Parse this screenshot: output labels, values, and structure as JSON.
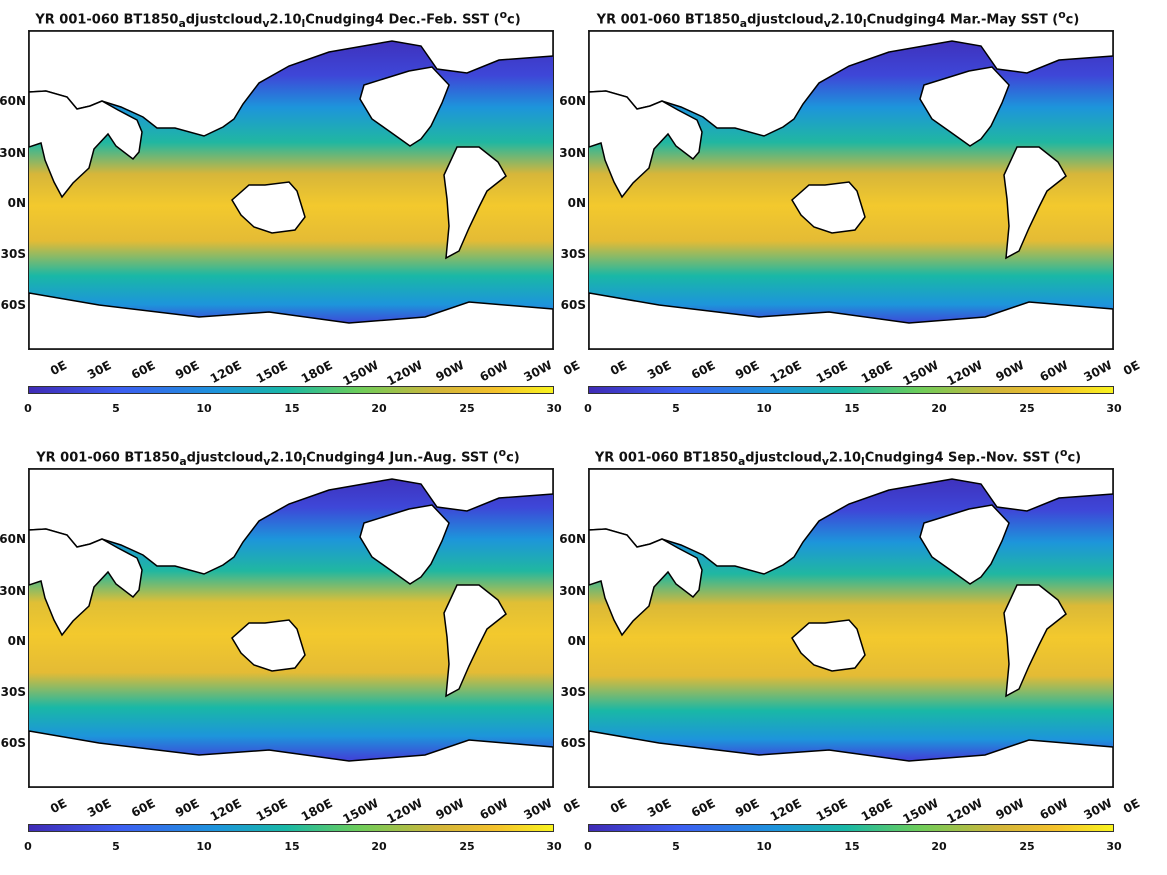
{
  "panels": [
    {
      "title": "YR 001-060 BT1850",
      "title_sub": "a",
      "title_mid": "djustcloud",
      "title_sub2": "v",
      "title_mid2": "2.10",
      "title_sub3": "l",
      "title_end": "Cnudging4 Dec.-Feb. SST (",
      "title_sup": "o",
      "title_unit": "c)",
      "season": "Dec.-Feb."
    },
    {
      "title": "YR 001-060 BT1850",
      "title_sub": "a",
      "title_mid": "djustcloud",
      "title_sub2": "v",
      "title_mid2": "2.10",
      "title_sub3": "l",
      "title_end": "Cnudging4 Mar.-May SST (",
      "title_sup": "o",
      "title_unit": "c)",
      "season": "Mar.-May"
    },
    {
      "title": "YR 001-060 BT1850",
      "title_sub": "a",
      "title_mid": "djustcloud",
      "title_sub2": "v",
      "title_mid2": "2.10",
      "title_sub3": "l",
      "title_end": "Cnudging4 Jun.-Aug. SST (",
      "title_sup": "o",
      "title_unit": "c)",
      "season": "Jun.-Aug."
    },
    {
      "title": "YR 001-060 BT1850",
      "title_sub": "a",
      "title_mid": "djustcloud",
      "title_sub2": "v",
      "title_mid2": "2.10",
      "title_sub3": "l",
      "title_end": "Cnudging4 Sep.-Nov. SST (",
      "title_sup": "o",
      "title_unit": "c)",
      "season": "Sep.-Nov."
    }
  ],
  "lat_labels": [
    "60N",
    "30N",
    "0N",
    "30S",
    "60S"
  ],
  "lon_labels": [
    "0E",
    "30E",
    "60E",
    "90E",
    "120E",
    "150E",
    "180E",
    "150W",
    "120W",
    "90W",
    "60W",
    "30W",
    "0E"
  ],
  "colorbar_ticks": [
    "0",
    "5",
    "10",
    "15",
    "20",
    "25",
    "30"
  ],
  "colorbar_range": [
    0,
    30
  ],
  "colors": {
    "cold": "#3f2bb5",
    "mid": "#19b8a6",
    "warm": "#f4c12c",
    "hot": "#f8f31f"
  }
}
